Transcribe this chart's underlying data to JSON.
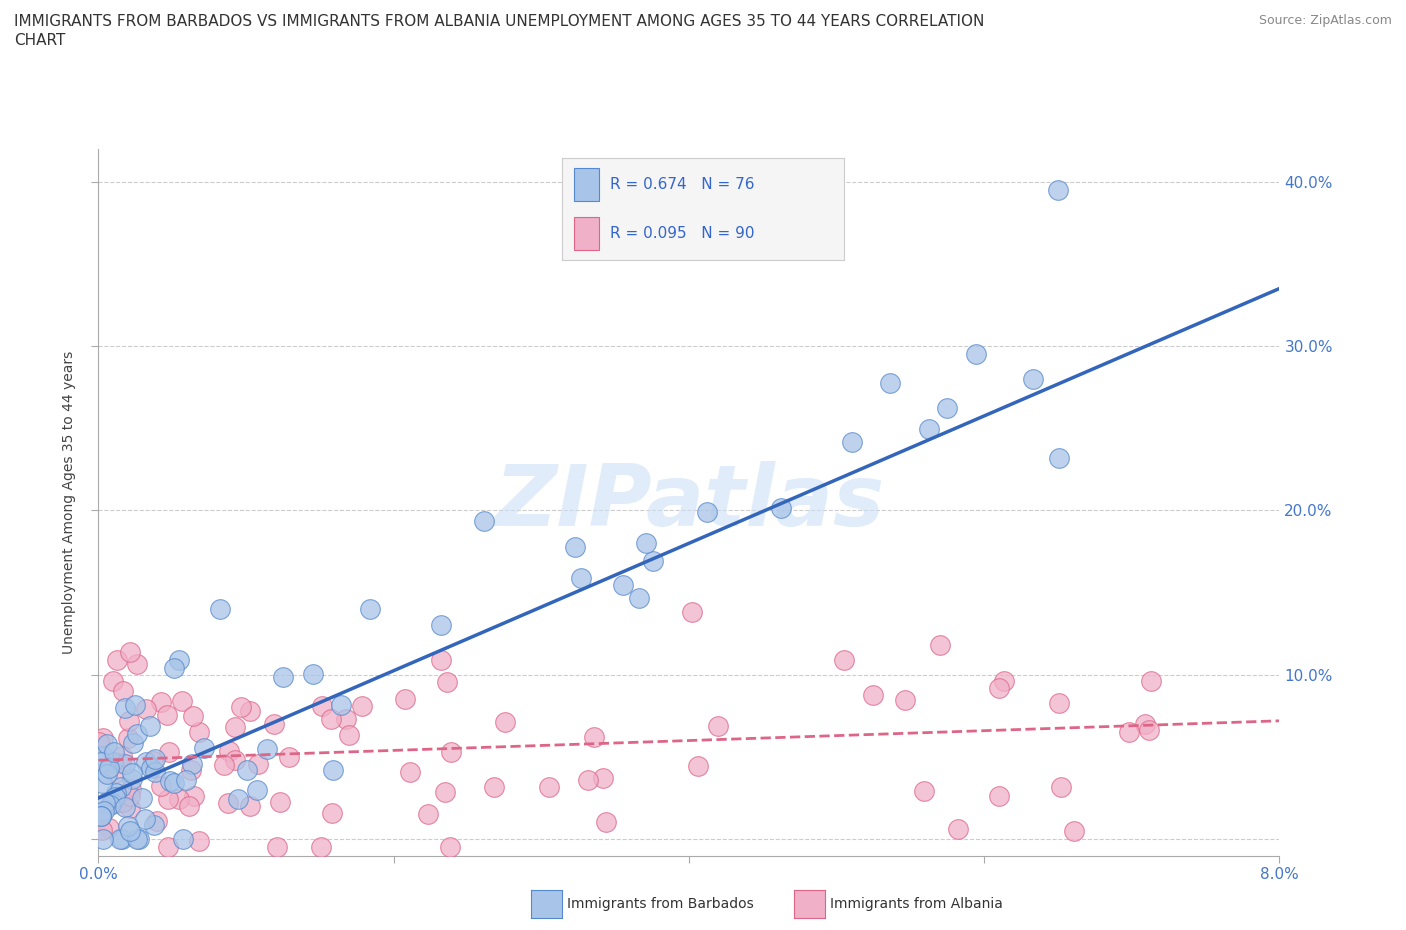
{
  "title_line1": "IMMIGRANTS FROM BARBADOS VS IMMIGRANTS FROM ALBANIA UNEMPLOYMENT AMONG AGES 35 TO 44 YEARS CORRELATION",
  "title_line2": "CHART",
  "source_text": "Source: ZipAtlas.com",
  "ylabel": "Unemployment Among Ages 35 to 44 years",
  "xlim": [
    0.0,
    0.08
  ],
  "ylim": [
    -0.01,
    0.42
  ],
  "barbados_color": "#a8c4e8",
  "albania_color": "#f0b0c8",
  "barbados_edge_color": "#5588cc",
  "albania_edge_color": "#dd6688",
  "barbados_line_color": "#3366bb",
  "albania_line_color": "#dd6688",
  "R_barbados": 0.674,
  "N_barbados": 76,
  "R_albania": 0.095,
  "N_albania": 90,
  "watermark": "ZIPatlas",
  "legend_label_barbados": "Immigrants from Barbados",
  "legend_label_albania": "Immigrants from Albania",
  "background_color": "#ffffff",
  "grid_color": "#cccccc",
  "tick_color": "#4477cc",
  "title_fontsize": 11,
  "axis_fontsize": 10,
  "tick_fontsize": 11,
  "barb_trend_x0": 0.0,
  "barb_trend_y0": 0.025,
  "barb_trend_x1": 0.08,
  "barb_trend_y1": 0.335,
  "alba_trend_x0": 0.0,
  "alba_trend_y0": 0.048,
  "alba_trend_x1": 0.08,
  "alba_trend_y1": 0.072
}
